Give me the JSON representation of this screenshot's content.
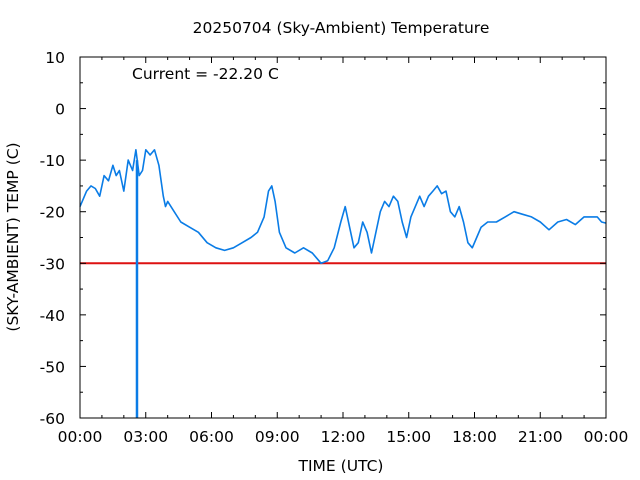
{
  "chart_data": {
    "type": "line",
    "title": "20250704 (Sky-Ambient) Temperature",
    "xlabel": "TIME (UTC)",
    "ylabel": "(SKY-AMBIENT) TEMP (C)",
    "annotation": "Current = -22.20 C",
    "xlim": [
      0,
      24
    ],
    "ylim": [
      -60,
      10
    ],
    "x_ticks": [
      "00:00",
      "03:00",
      "06:00",
      "09:00",
      "12:00",
      "15:00",
      "18:00",
      "21:00",
      "00:00"
    ],
    "y_ticks": [
      "10",
      "0",
      "-10",
      "-20",
      "-30",
      "-40",
      "-50",
      "-60"
    ],
    "threshold": -30,
    "colors": {
      "series": "#0a7ce6",
      "threshold": "#dd1111",
      "axis": "#000000"
    },
    "series": [
      {
        "x": [
          0,
          0.1,
          0.3,
          0.5,
          0.7,
          0.9,
          1.1,
          1.3,
          1.5,
          1.65,
          1.8,
          2.0,
          2.2,
          2.4,
          2.55,
          2.7,
          2.85,
          3.0,
          3.2,
          3.4,
          3.6,
          3.8,
          3.9,
          4.0,
          4.3,
          4.6,
          5.0,
          5.4,
          5.8,
          6.2,
          6.6,
          7.0,
          7.4,
          7.8,
          8.1,
          8.4,
          8.6,
          8.75,
          8.9,
          9.1,
          9.4,
          9.8,
          10.2,
          10.6,
          11.0,
          11.3,
          11.6,
          11.9,
          12.1,
          12.3,
          12.5,
          12.7,
          12.9,
          13.1,
          13.3,
          13.5,
          13.7,
          13.9,
          14.1,
          14.3,
          14.5,
          14.7,
          14.9,
          15.1,
          15.3,
          15.5,
          15.7,
          15.9,
          16.1,
          16.3,
          16.5,
          16.7,
          16.9,
          17.1,
          17.3,
          17.5,
          17.7,
          17.9,
          18.1,
          18.3,
          18.6,
          19.0,
          19.4,
          19.8,
          20.2,
          20.6,
          21.0,
          21.4,
          21.8,
          22.2,
          22.6,
          23.0,
          23.3,
          23.6,
          23.8,
          24.0
        ],
        "y": [
          -19,
          -18,
          -16,
          -15,
          -15.5,
          -17,
          -13,
          -14,
          -11,
          -13,
          -12,
          -16,
          -10,
          -12,
          -8,
          -13,
          -12,
          -8,
          -9,
          -8,
          -11,
          -17,
          -19,
          -18,
          -20,
          -22,
          -23,
          -24,
          -26,
          -27,
          -27.5,
          -27,
          -26,
          -25,
          -24,
          -21,
          -16,
          -15,
          -18,
          -24,
          -27,
          -28,
          -27,
          -28,
          -30,
          -29.5,
          -27,
          -22,
          -19,
          -23,
          -27,
          -26,
          -22,
          -24,
          -28,
          -24,
          -20,
          -18,
          -19,
          -17,
          -18,
          -22,
          -25,
          -21,
          -19,
          -17,
          -19,
          -17,
          -16,
          -15,
          -16.5,
          -16,
          -20,
          -21,
          -19,
          -22,
          -26,
          -27,
          -25,
          -23,
          -22,
          -22,
          -21,
          -20,
          -20.5,
          -21,
          -22,
          -23.5,
          -22,
          -21.5,
          -22.5,
          -21,
          -21,
          -21,
          -22,
          -22.2
        ]
      }
    ],
    "spike": {
      "x": 2.6,
      "y_low": -60,
      "y_high": -10
    }
  }
}
